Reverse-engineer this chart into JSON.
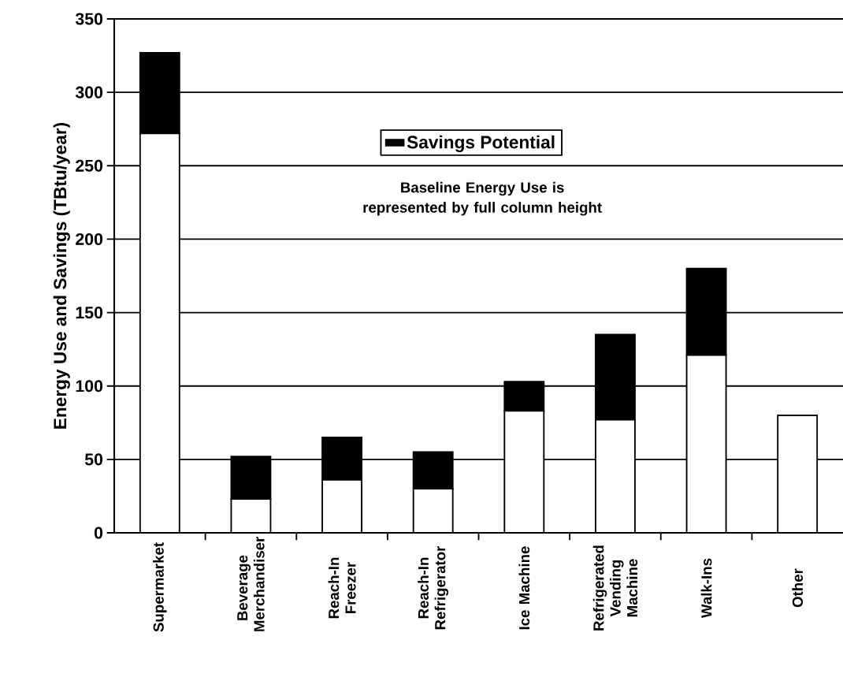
{
  "chart_data": {
    "type": "bar",
    "stacked": true,
    "ylabel": "Energy Use and Savings (TBtu/year)",
    "categories": [
      "Supermarket",
      "Beverage Merchandiser",
      "Reach-In Freezer",
      "Reach-In Refrigerator",
      "Ice Machine",
      "Refrigerated Vending Machine",
      "Walk-Ins",
      "Other"
    ],
    "series": [
      {
        "color": "#ffffff",
        "values": [
          272,
          23,
          36,
          30,
          83,
          77,
          121,
          80
        ]
      },
      {
        "name": "Savings Potential",
        "color": "#000000",
        "values": [
          55,
          29,
          29,
          25,
          20,
          58,
          59,
          0
        ]
      }
    ],
    "ylim": [
      0,
      350
    ],
    "yticks": [
      0,
      50,
      100,
      150,
      200,
      250,
      300,
      350
    ],
    "grid": "y",
    "legend": "top",
    "annotations": [
      "Baseline Energy Use is represented by full column height"
    ]
  }
}
